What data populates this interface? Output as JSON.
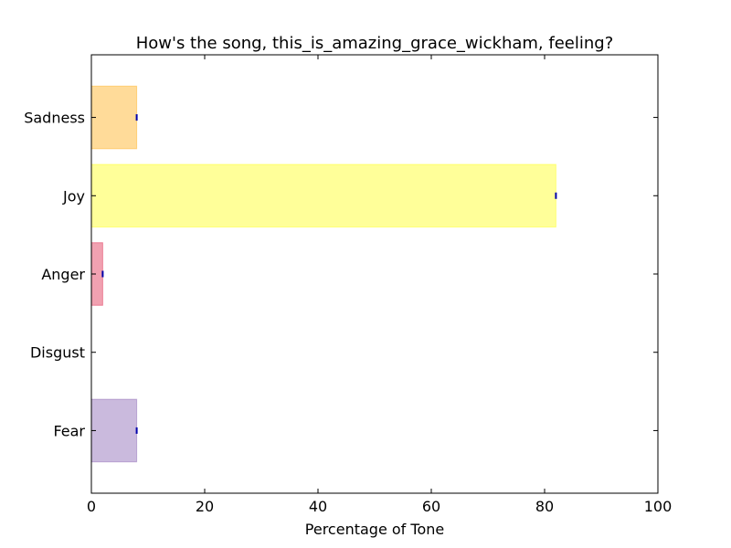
{
  "chart_data": {
    "type": "bar",
    "orientation": "horizontal",
    "title": "How's the song, this_is_amazing_grace_wickham, feeling?",
    "xlabel": "Percentage of Tone",
    "ylabel": "",
    "xlim": [
      0,
      100
    ],
    "xticks": [
      0,
      20,
      40,
      60,
      80,
      100
    ],
    "categories": [
      "Fear",
      "Disgust",
      "Anger",
      "Joy",
      "Sadness"
    ],
    "values": [
      8,
      0,
      2,
      82,
      8
    ],
    "colors": [
      "#7b52ab",
      "#3a9a3a",
      "#dc143c",
      "#ffff00",
      "#ffa500"
    ],
    "bar_opacity": 0.4,
    "marker_color": "#0000aa",
    "grid": false,
    "legend": "none"
  }
}
